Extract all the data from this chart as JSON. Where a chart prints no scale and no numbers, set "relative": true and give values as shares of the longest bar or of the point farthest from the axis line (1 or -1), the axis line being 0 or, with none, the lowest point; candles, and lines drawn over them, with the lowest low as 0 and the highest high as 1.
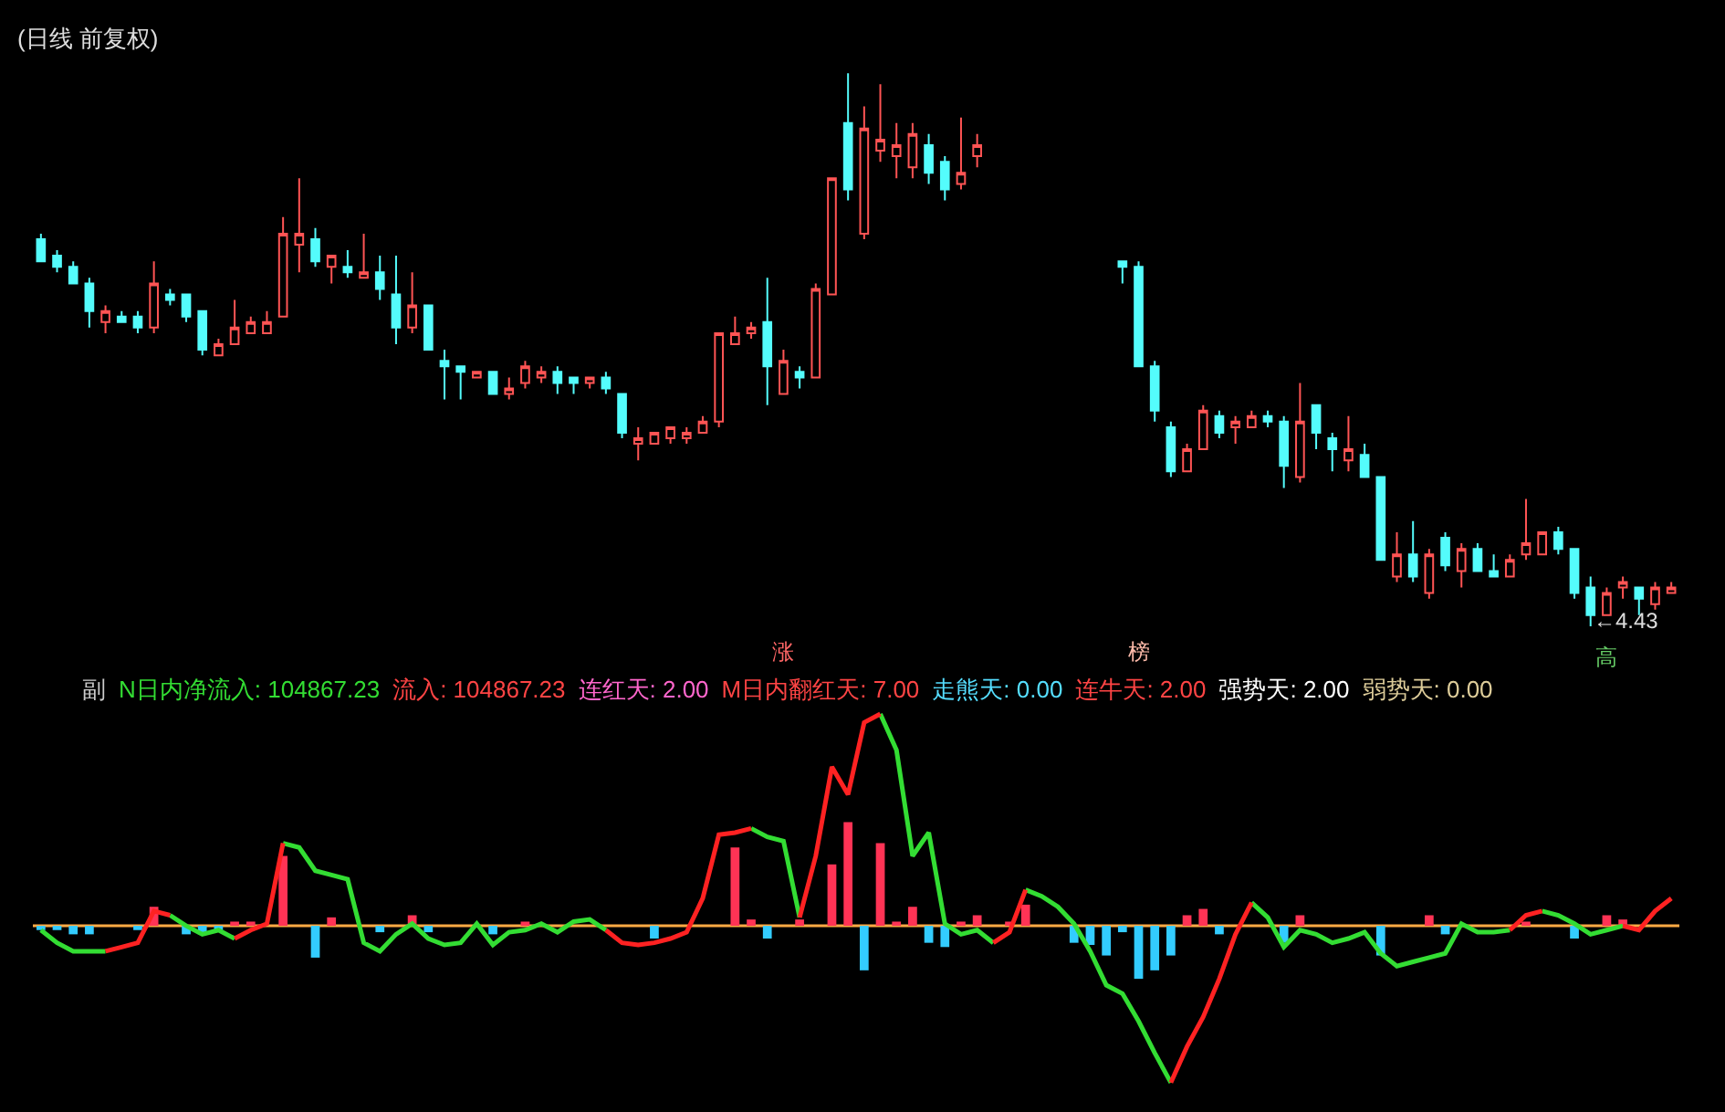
{
  "chart_data": [
    {
      "type": "candlestick",
      "title": "(日线 前复权)",
      "relative": true,
      "annotations": [
        "涨",
        "榜",
        "高",
        "←4.43"
      ],
      "categories": [
        null,
        null,
        null,
        null,
        null,
        null,
        null,
        null,
        null,
        null,
        null,
        null,
        null,
        null,
        null,
        null,
        null,
        null,
        null,
        null,
        null,
        null,
        null,
        null,
        null,
        null,
        null,
        null,
        null,
        null,
        null,
        null,
        null,
        null,
        null,
        null,
        null,
        null,
        null,
        null,
        null,
        null,
        null,
        null,
        null,
        null,
        null,
        null,
        null,
        null,
        null,
        null,
        null,
        null,
        null,
        null,
        null,
        null,
        null,
        null,
        null,
        null,
        null,
        null,
        null,
        null,
        null,
        null,
        null,
        null,
        null,
        null,
        null,
        null,
        null,
        null,
        null,
        null,
        null,
        null,
        null,
        null,
        null,
        null,
        null,
        null,
        null,
        null,
        null,
        null,
        null,
        null,
        null,
        null,
        null,
        null,
        null,
        null,
        null,
        null,
        null,
        null
      ],
      "colors": [
        "#54fcfc",
        "#54fcfc",
        "#54fcfc",
        "#54fcfc",
        "#ff5454",
        "#54fcfc",
        "#54fcfc",
        "#ff5454",
        "#54fcfc",
        "#54fcfc",
        "#54fcfc",
        "#ff5454",
        "#ff5454",
        "#ff5454",
        "#ff5454",
        "#ff5454",
        "#ff5454",
        "#54fcfc",
        "#ff5454",
        "#54fcfc",
        "#ff5454",
        "#54fcfc",
        "#54fcfc",
        "#ff5454",
        "#54fcfc",
        "#54fcfc",
        "#54fcfc",
        "#ff5454",
        "#54fcfc",
        "#ff5454",
        "#ff5454",
        "#ff5454",
        "#54fcfc",
        "#54fcfc",
        "#ff5454",
        "#54fcfc",
        "#54fcfc",
        "#ff5454",
        "#ff5454",
        "#ff5454",
        "#ff5454",
        "#ff5454",
        "#ff5454",
        "#ff5454",
        "#ff5454",
        "#54fcfc",
        "#ff5454",
        "#54fcfc",
        "#ff5454",
        "#ff5454",
        "#54fcfc",
        "#ff5454",
        "#ff5454",
        "#ff5454",
        "#ff5454",
        "#54fcfc",
        "#54fcfc",
        "#ff5454",
        "#ff5454",
        null,
        null,
        null,
        null,
        null,
        null,
        null,
        null,
        "#54fcfc",
        "#54fcfc",
        "#54fcfc",
        "#54fcfc",
        "#ff5454",
        "#ff5454",
        "#54fcfc",
        "#ff5454",
        "#ff5454",
        "#54fcfc",
        "#54fcfc",
        "#ff5454",
        "#54fcfc",
        "#54fcfc",
        "#ff5454",
        "#54fcfc",
        "#54fcfc",
        "#ff5454",
        "#54fcfc",
        "#ff5454",
        "#54fcfc",
        "#ff5454",
        "#54fcfc",
        "#54fcfc",
        "#ff5454",
        "#ff5454",
        "#ff5454",
        "#54fcfc",
        "#54fcfc",
        "#54fcfc",
        "#ff5454",
        "#ff5454",
        "#54fcfc",
        "#ff5454",
        "#ff5454"
      ],
      "ohlc": [
        [
          0.7,
          0.71,
          0.66,
          0.66
        ],
        [
          0.67,
          0.68,
          0.64,
          0.65
        ],
        [
          0.65,
          0.66,
          0.62,
          0.62
        ],
        [
          0.62,
          0.63,
          0.54,
          0.57
        ],
        [
          0.55,
          0.58,
          0.53,
          0.57
        ],
        [
          0.56,
          0.57,
          0.55,
          0.55
        ],
        [
          0.56,
          0.57,
          0.53,
          0.54
        ],
        [
          0.54,
          0.66,
          0.53,
          0.62
        ],
        [
          0.6,
          0.61,
          0.58,
          0.59
        ],
        [
          0.6,
          0.6,
          0.55,
          0.56
        ],
        [
          0.57,
          0.57,
          0.49,
          0.5
        ],
        [
          0.49,
          0.52,
          0.49,
          0.51
        ],
        [
          0.51,
          0.59,
          0.51,
          0.54
        ],
        [
          0.53,
          0.56,
          0.53,
          0.55
        ],
        [
          0.53,
          0.57,
          0.53,
          0.55
        ],
        [
          0.56,
          0.74,
          0.56,
          0.71
        ],
        [
          0.69,
          0.81,
          0.64,
          0.71
        ],
        [
          0.7,
          0.72,
          0.65,
          0.66
        ],
        [
          0.65,
          0.67,
          0.62,
          0.67
        ],
        [
          0.65,
          0.68,
          0.63,
          0.64
        ],
        [
          0.63,
          0.71,
          0.63,
          0.64
        ],
        [
          0.64,
          0.67,
          0.59,
          0.61
        ],
        [
          0.6,
          0.67,
          0.51,
          0.54
        ],
        [
          0.54,
          0.64,
          0.53,
          0.58
        ],
        [
          0.58,
          0.58,
          0.5,
          0.5
        ],
        [
          0.48,
          0.5,
          0.41,
          0.47
        ],
        [
          0.47,
          0.47,
          0.41,
          0.46
        ],
        [
          0.45,
          0.46,
          0.45,
          0.46
        ],
        [
          0.46,
          0.46,
          0.42,
          0.42
        ],
        [
          0.42,
          0.45,
          0.41,
          0.43
        ],
        [
          0.44,
          0.48,
          0.43,
          0.47
        ],
        [
          0.45,
          0.47,
          0.44,
          0.46
        ],
        [
          0.46,
          0.47,
          0.42,
          0.44
        ],
        [
          0.45,
          0.45,
          0.42,
          0.44
        ],
        [
          0.44,
          0.45,
          0.43,
          0.45
        ],
        [
          0.45,
          0.46,
          0.42,
          0.43
        ],
        [
          0.42,
          0.42,
          0.34,
          0.35
        ],
        [
          0.33,
          0.36,
          0.3,
          0.34
        ],
        [
          0.33,
          0.35,
          0.33,
          0.35
        ],
        [
          0.34,
          0.36,
          0.33,
          0.36
        ],
        [
          0.34,
          0.36,
          0.33,
          0.35
        ],
        [
          0.35,
          0.38,
          0.35,
          0.37
        ],
        [
          0.37,
          0.53,
          0.36,
          0.53
        ],
        [
          0.51,
          0.56,
          0.51,
          0.53
        ],
        [
          0.53,
          0.55,
          0.52,
          0.54
        ],
        [
          0.55,
          0.63,
          0.4,
          0.47
        ],
        [
          0.42,
          0.5,
          0.42,
          0.48
        ],
        [
          0.46,
          0.47,
          0.43,
          0.45
        ],
        [
          0.45,
          0.62,
          0.45,
          0.61
        ],
        [
          0.6,
          0.81,
          0.6,
          0.81
        ],
        [
          0.91,
          1,
          0.77,
          0.79
        ],
        [
          0.71,
          0.94,
          0.7,
          0.9
        ],
        [
          0.86,
          0.98,
          0.84,
          0.88
        ],
        [
          0.85,
          0.91,
          0.81,
          0.87
        ],
        [
          0.83,
          0.91,
          0.81,
          0.89
        ],
        [
          0.87,
          0.89,
          0.8,
          0.82
        ],
        [
          0.84,
          0.85,
          0.77,
          0.79
        ],
        [
          0.8,
          0.92,
          0.79,
          0.82
        ],
        [
          0.85,
          0.89,
          0.83,
          0.87
        ],
        null,
        null,
        null,
        null,
        null,
        null,
        null,
        null,
        [
          0.66,
          0.66,
          0.62,
          0.65
        ],
        [
          0.65,
          0.66,
          0.47,
          0.47
        ],
        [
          0.47,
          0.48,
          0.37,
          0.39
        ],
        [
          0.36,
          0.37,
          0.27,
          0.28
        ],
        [
          0.28,
          0.33,
          0.28,
          0.32
        ],
        [
          0.32,
          0.4,
          0.32,
          0.39
        ],
        [
          0.38,
          0.39,
          0.34,
          0.35
        ],
        [
          0.36,
          0.38,
          0.33,
          0.37
        ],
        [
          0.36,
          0.39,
          0.36,
          0.38
        ],
        [
          0.38,
          0.39,
          0.36,
          0.37
        ],
        [
          0.37,
          0.38,
          0.25,
          0.29
        ],
        [
          0.27,
          0.44,
          0.26,
          0.37
        ],
        [
          0.4,
          0.4,
          0.32,
          0.35
        ],
        [
          0.34,
          0.35,
          0.28,
          0.32
        ],
        [
          0.3,
          0.38,
          0.28,
          0.32
        ],
        [
          0.31,
          0.33,
          0.27,
          0.27
        ],
        [
          0.27,
          0.27,
          0.12,
          0.12
        ],
        [
          0.09,
          0.17,
          0.08,
          0.13
        ],
        [
          0.13,
          0.19,
          0.08,
          0.09
        ],
        [
          0.06,
          0.14,
          0.05,
          0.13
        ],
        [
          0.16,
          0.17,
          0.1,
          0.11
        ],
        [
          0.1,
          0.15,
          0.07,
          0.14
        ],
        [
          0.14,
          0.15,
          0.1,
          0.1
        ],
        [
          0.1,
          0.13,
          0.09,
          0.09
        ],
        [
          0.09,
          0.13,
          0.09,
          0.12
        ],
        [
          0.13,
          0.23,
          0.12,
          0.15
        ],
        [
          0.13,
          0.17,
          0.13,
          0.17
        ],
        [
          0.17,
          0.18,
          0.13,
          0.14
        ],
        [
          0.14,
          0.14,
          0.05,
          0.06
        ],
        [
          0.07,
          0.09,
          0,
          0.02
        ],
        [
          0.02,
          0.07,
          0.02,
          0.06
        ],
        [
          0.07,
          0.09,
          0.05,
          0.08
        ],
        [
          0.07,
          0.07,
          0.02,
          0.05
        ],
        [
          0.04,
          0.08,
          0.03,
          0.07
        ],
        [
          0.06,
          0.08,
          0.06,
          0.07
        ]
      ]
    },
    {
      "type": "bar",
      "relative": true,
      "annotations": [
        "副",
        "N日内净流入: 104867.23",
        "流入: 104867.23",
        "连红天: 2.00",
        "M日内翻红天: 7.00",
        "走熊天: 0.00",
        "连牛天: 2.00",
        "强势天: 2.00",
        "弱势天: 0.00"
      ],
      "categories": [
        null,
        null,
        null,
        null,
        null,
        null,
        null,
        null,
        null,
        null,
        null,
        null,
        null,
        null,
        null,
        null,
        null,
        null,
        null,
        null,
        null,
        null,
        null,
        null,
        null,
        null,
        null,
        null,
        null,
        null,
        null,
        null,
        null,
        null,
        null,
        null,
        null,
        null,
        null,
        null,
        null,
        null,
        null,
        null,
        null,
        null,
        null,
        null,
        null,
        null,
        null,
        null,
        null,
        null,
        null,
        null,
        null,
        null,
        null,
        null,
        null,
        null,
        null,
        null,
        null,
        null,
        null,
        null,
        null,
        null,
        null,
        null,
        null,
        null,
        null,
        null,
        null,
        null,
        null,
        null,
        null,
        null,
        null,
        null,
        null,
        null,
        null,
        null,
        null,
        null,
        null,
        null,
        null,
        null,
        null,
        null,
        null,
        null,
        null,
        null,
        null,
        null
      ],
      "ref_lines": [
        {
          "axis": "y",
          "value": 0,
          "color": "#ffaa44"
        }
      ],
      "series": [
        {
          "type": "bar",
          "color": "#ff3355",
          "values": [
            null,
            null,
            null,
            null,
            null,
            null,
            null,
            0.09,
            null,
            null,
            null,
            null,
            0.02,
            0.02,
            null,
            0.33,
            null,
            null,
            0.04,
            null,
            null,
            null,
            null,
            0.05,
            null,
            null,
            null,
            null,
            null,
            null,
            0.02,
            null,
            null,
            null,
            null,
            null,
            null,
            null,
            null,
            null,
            null,
            null,
            null,
            0.37,
            0.03,
            null,
            null,
            0.03,
            null,
            0.29,
            0.49,
            null,
            0.39,
            0.02,
            0.09,
            null,
            null,
            0.02,
            0.05,
            null,
            0.02,
            0.1,
            null,
            null,
            null,
            null,
            null,
            null,
            null,
            null,
            null,
            0.05,
            0.08,
            null,
            null,
            null,
            null,
            null,
            0.05,
            null,
            null,
            null,
            null,
            null,
            null,
            null,
            0.05,
            null,
            null,
            null,
            null,
            null,
            0.02,
            null,
            null,
            null,
            null,
            0.05,
            0.03,
            null,
            null,
            null
          ]
        },
        {
          "type": "bar",
          "color": "#33ccff",
          "values": [
            -0.02,
            -0.02,
            -0.04,
            -0.04,
            null,
            null,
            -0.02,
            null,
            null,
            -0.04,
            -0.04,
            -0.02,
            null,
            null,
            null,
            null,
            null,
            -0.15,
            null,
            null,
            null,
            -0.03,
            null,
            null,
            -0.03,
            null,
            null,
            null,
            -0.04,
            null,
            null,
            null,
            null,
            null,
            null,
            null,
            null,
            null,
            -0.06,
            null,
            null,
            null,
            null,
            null,
            null,
            -0.06,
            null,
            null,
            null,
            null,
            null,
            -0.21,
            null,
            null,
            null,
            -0.08,
            -0.1,
            null,
            null,
            null,
            null,
            null,
            null,
            null,
            -0.08,
            -0.09,
            -0.14,
            -0.03,
            -0.25,
            -0.21,
            -0.14,
            null,
            null,
            -0.04,
            null,
            null,
            null,
            -0.08,
            null,
            null,
            null,
            null,
            null,
            -0.14,
            null,
            null,
            null,
            -0.04,
            null,
            null,
            null,
            null,
            null,
            null,
            null,
            -0.06,
            null,
            null,
            null,
            null,
            null,
            null
          ]
        },
        {
          "type": "line",
          "color": "#33dd33",
          "values": [
            -0.02,
            -0.08,
            -0.12,
            -0.12,
            -0.12,
            null,
            null,
            null,
            0.05,
            0,
            -0.04,
            -0.02,
            -0.06,
            null,
            null,
            0.39,
            0.37,
            0.26,
            0.24,
            0.22,
            -0.08,
            -0.12,
            -0.04,
            0.01,
            -0.06,
            -0.09,
            -0.08,
            0.01,
            -0.09,
            -0.03,
            -0.02,
            0.01,
            -0.03,
            0.02,
            0.03,
            -0.02,
            null,
            null,
            null,
            null,
            null,
            null,
            null,
            null,
            0.46,
            0.42,
            0.4,
            0.04,
            null,
            null,
            null,
            null,
            1,
            0.83,
            0.33,
            0.44,
            0.01,
            -0.04,
            -0.02,
            -0.08,
            null,
            0.17,
            0.14,
            0.09,
            0.01,
            -0.12,
            -0.28,
            -0.32,
            -0.45,
            -0.6,
            -0.74,
            null,
            null,
            null,
            null,
            0.11,
            0.04,
            -0.1,
            -0.02,
            -0.04,
            -0.08,
            -0.06,
            -0.03,
            -0.13,
            -0.19,
            -0.17,
            -0.15,
            -0.13,
            0.01,
            -0.03,
            -0.03,
            -0.02,
            null,
            0.07,
            0.05,
            0.01,
            -0.04,
            -0.02,
            0,
            null,
            null,
            null
          ]
        },
        {
          "type": "line",
          "color": "#ff2222",
          "values": [
            null,
            null,
            null,
            null,
            -0.12,
            -0.1,
            -0.08,
            0.07,
            0.05,
            null,
            null,
            null,
            -0.06,
            -0.02,
            0.01,
            0.39,
            null,
            null,
            null,
            null,
            null,
            null,
            null,
            null,
            null,
            null,
            null,
            null,
            null,
            null,
            null,
            null,
            null,
            null,
            null,
            -0.02,
            -0.08,
            -0.09,
            -0.08,
            -0.06,
            -0.03,
            0.13,
            0.43,
            0.44,
            0.46,
            null,
            null,
            0.04,
            0.33,
            0.75,
            0.62,
            0.96,
            1,
            null,
            null,
            null,
            null,
            null,
            null,
            -0.08,
            -0.03,
            0.17,
            null,
            null,
            null,
            null,
            null,
            null,
            null,
            null,
            -0.74,
            -0.57,
            -0.43,
            -0.25,
            -0.04,
            0.11,
            null,
            null,
            null,
            null,
            null,
            null,
            null,
            null,
            null,
            null,
            null,
            null,
            null,
            null,
            null,
            -0.02,
            0.05,
            0.07,
            null,
            null,
            null,
            null,
            0,
            -0.02,
            0.07,
            0.13
          ]
        }
      ]
    }
  ]
}
